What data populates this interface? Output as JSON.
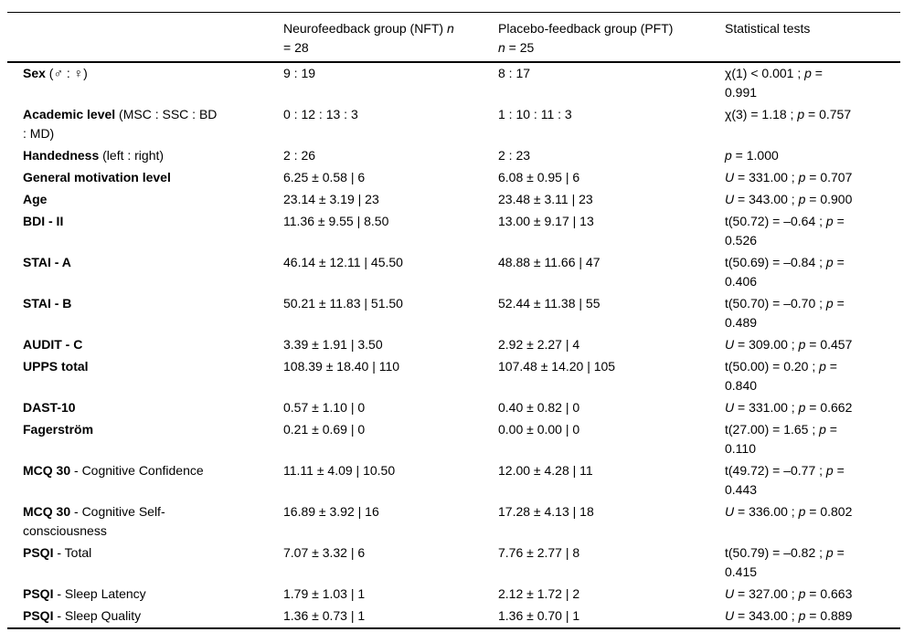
{
  "table": {
    "columns": [
      {
        "label": ""
      },
      {
        "label": "Neurofeedback group (NFT) n\n= 28"
      },
      {
        "label": "Placebo-feedback group (PFT)\nn = 25"
      },
      {
        "label": "Statistical tests"
      }
    ],
    "rows": [
      {
        "label_bold": "Sex",
        "label_rest": " (♂ : ♀)",
        "nft": "9 : 19",
        "pft": "8 : 17",
        "stat": "χ(1) < 0.001 ; p =\n0.991"
      },
      {
        "label_bold": "Academic level",
        "label_rest": " (MSC : SSC : BD\n: MD)",
        "nft": "0 : 12 : 13 : 3",
        "pft": "1 : 10 : 11 : 3",
        "stat": "χ(3) = 1.18 ; p = 0.757"
      },
      {
        "label_bold": "Handedness",
        "label_rest": " (left : right)",
        "nft": "2 : 26",
        "pft": "2 : 23",
        "stat": "p = 1.000"
      },
      {
        "label_bold": "General motivation level",
        "label_rest": "",
        "nft": "6.25 ± 0.58 | 6",
        "pft": "6.08 ± 0.95 | 6",
        "stat": "U = 331.00 ; p = 0.707"
      },
      {
        "label_bold": "Age",
        "label_rest": "",
        "nft": "23.14 ± 3.19 | 23",
        "pft": "23.48 ± 3.11 | 23",
        "stat": "U = 343.00 ; p = 0.900"
      },
      {
        "label_bold": "BDI - II",
        "label_rest": "",
        "nft": "11.36 ± 9.55 | 8.50",
        "pft": "13.00 ± 9.17 | 13",
        "stat": "t(50.72) = –0.64 ; p =\n0.526"
      },
      {
        "label_bold": "STAI - A",
        "label_rest": "",
        "nft": "46.14 ± 12.11 | 45.50",
        "pft": "48.88 ± 11.66 | 47",
        "stat": "t(50.69) = –0.84 ; p =\n0.406"
      },
      {
        "label_bold": "STAI - B",
        "label_rest": "",
        "nft": "50.21 ± 11.83 | 51.50",
        "pft": "52.44 ± 11.38 | 55",
        "stat": "t(50.70) = –0.70 ; p =\n0.489"
      },
      {
        "label_bold": "AUDIT - C",
        "label_rest": "",
        "nft": "3.39 ± 1.91 | 3.50",
        "pft": "2.92 ± 2.27 | 4",
        "stat": "U = 309.00 ; p = 0.457"
      },
      {
        "label_bold": "UPPS total",
        "label_rest": "",
        "nft": "108.39 ± 18.40 | 110",
        "pft": "107.48 ± 14.20 | 105",
        "stat": "t(50.00) = 0.20 ; p =\n0.840"
      },
      {
        "label_bold": "DAST-10",
        "label_rest": "",
        "nft": "0.57 ± 1.10 | 0",
        "pft": "0.40 ± 0.82 | 0",
        "stat": "U = 331.00 ; p = 0.662"
      },
      {
        "label_bold": "Fagerström",
        "label_rest": "",
        "nft": "0.21 ± 0.69 | 0",
        "pft": "0.00 ± 0.00 | 0",
        "stat": "t(27.00) = 1.65 ; p =\n0.110"
      },
      {
        "label_bold": "MCQ 30",
        "label_rest": " - Cognitive Confidence",
        "nft": "11.11 ± 4.09 | 10.50",
        "pft": "12.00 ± 4.28 | 11",
        "stat": "t(49.72) = –0.77 ; p =\n0.443"
      },
      {
        "label_bold": "MCQ 30",
        "label_rest": " - Cognitive Self-\nconsciousness",
        "nft": "16.89 ± 3.92 | 16",
        "pft": "17.28 ± 4.13 | 18",
        "stat": "U = 336.00 ; p = 0.802"
      },
      {
        "label_bold": "PSQI",
        "label_rest": " - Total",
        "nft": "7.07 ± 3.32 | 6",
        "pft": "7.76 ± 2.77 | 8",
        "stat": "t(50.79) = –0.82 ; p =\n0.415"
      },
      {
        "label_bold": "PSQI",
        "label_rest": " - Sleep Latency",
        "nft": "1.79 ± 1.03 | 1",
        "pft": "2.12 ± 1.72 | 2",
        "stat": "U = 327.00 ; p = 0.663"
      },
      {
        "label_bold": "PSQI",
        "label_rest": " - Sleep Quality",
        "nft": "1.36 ± 0.73 | 1",
        "pft": "1.36 ± 0.70 | 1",
        "stat": "U = 343.00 ; p = 0.889"
      }
    ]
  }
}
